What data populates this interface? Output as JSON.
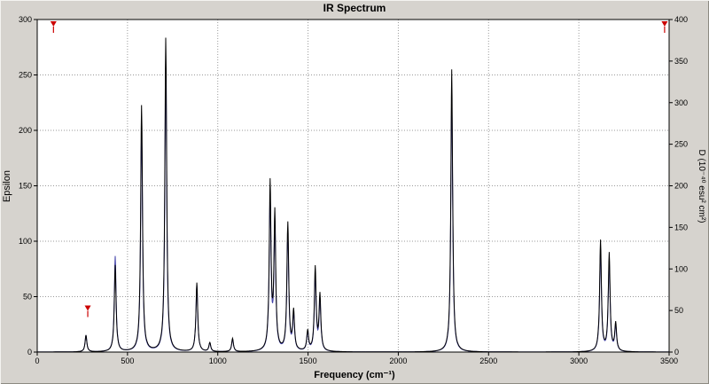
{
  "chart_data": {
    "type": "line",
    "title": "IR Spectrum",
    "x_axis": {
      "label": "Frequency (cm⁻¹)",
      "min": 0,
      "max": 3500,
      "ticks": [
        0,
        500,
        1000,
        1500,
        2000,
        2500,
        3000,
        3500
      ]
    },
    "y_left": {
      "label": "Epsilon",
      "min": 0,
      "max": 300,
      "ticks": [
        0,
        50,
        100,
        150,
        200,
        250,
        300
      ]
    },
    "y_right": {
      "label": "D (10⁻⁴⁰ esu² cm²)",
      "min": 0,
      "max": 400,
      "ticks": [
        0,
        50,
        100,
        150,
        200,
        250,
        300,
        350,
        400
      ]
    },
    "grid": "dotted",
    "legend": "none",
    "lineshape": {
      "type": "lorentzian",
      "hwhm": 6
    },
    "series": [
      {
        "name": "Epsilon",
        "axis": "left",
        "color": "#000000"
      },
      {
        "name": "D",
        "axis": "right",
        "color": "#4040a8"
      }
    ],
    "peaks": [
      {
        "freq": 270,
        "epsilon": 15,
        "d": 20
      },
      {
        "freq": 432,
        "epsilon": 78,
        "d": 115
      },
      {
        "freq": 578,
        "epsilon": 222,
        "d": 265
      },
      {
        "freq": 712,
        "epsilon": 283,
        "d": 340
      },
      {
        "freq": 884,
        "epsilon": 62,
        "d": 80
      },
      {
        "freq": 956,
        "epsilon": 8,
        "d": 10
      },
      {
        "freq": 1082,
        "epsilon": 12,
        "d": 15
      },
      {
        "freq": 1290,
        "epsilon": 150,
        "d": 182
      },
      {
        "freq": 1316,
        "epsilon": 122,
        "d": 148
      },
      {
        "freq": 1388,
        "epsilon": 115,
        "d": 140
      },
      {
        "freq": 1420,
        "epsilon": 35,
        "d": 42
      },
      {
        "freq": 1498,
        "epsilon": 18,
        "d": 22
      },
      {
        "freq": 1540,
        "epsilon": 75,
        "d": 90
      },
      {
        "freq": 1566,
        "epsilon": 50,
        "d": 60
      },
      {
        "freq": 2296,
        "epsilon": 255,
        "d": 310
      },
      {
        "freq": 3120,
        "epsilon": 100,
        "d": 122
      },
      {
        "freq": 3168,
        "epsilon": 88,
        "d": 107
      },
      {
        "freq": 3204,
        "epsilon": 25,
        "d": 30
      }
    ],
    "cursor_marker": {
      "freq": 280,
      "epsilon": 42
    },
    "range_markers": [
      {
        "freq": 90
      },
      {
        "freq": 3475
      }
    ]
  },
  "colors": {
    "background": "#d6d3ce",
    "plot_bg": "#ffffff",
    "grid": "#9a9a9a",
    "axis": "#000000",
    "marker": "#cc0000"
  }
}
